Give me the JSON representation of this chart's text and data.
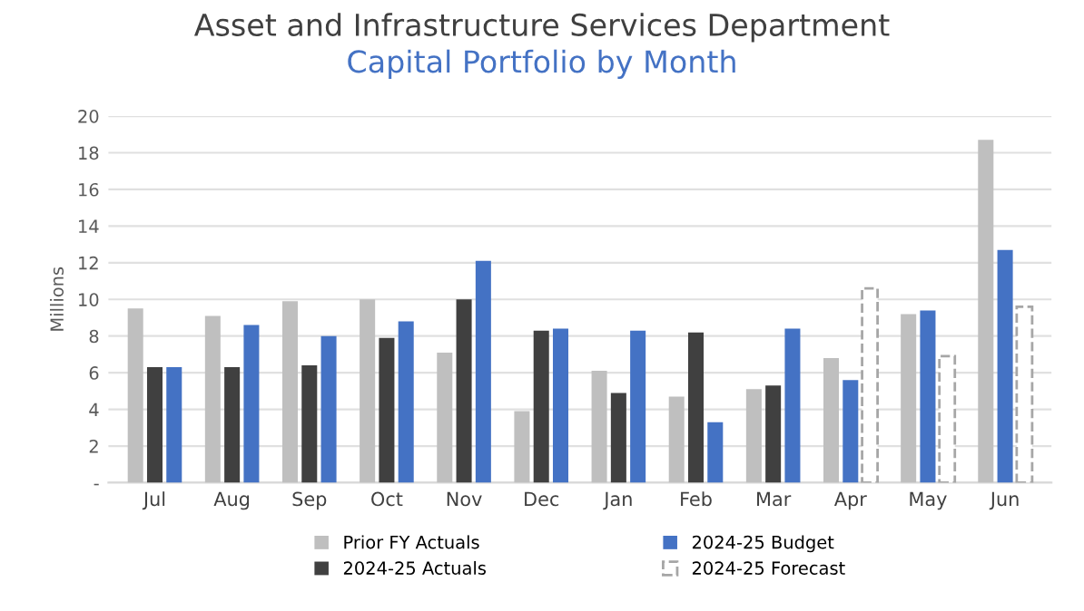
{
  "chart_data": {
    "type": "bar",
    "title": "Asset and Infrastructure Services Department",
    "subtitle": "Capital Portfolio by Month",
    "ylabel": "Millions",
    "categories": [
      "Jul",
      "Aug",
      "Sep",
      "Oct",
      "Nov",
      "Dec",
      "Jan",
      "Feb",
      "Mar",
      "Apr",
      "May",
      "Jun"
    ],
    "series": [
      {
        "name": "Prior FY Actuals",
        "color": "#bfbfbf",
        "values": [
          9.5,
          9.1,
          9.9,
          10.0,
          7.1,
          3.9,
          6.1,
          4.7,
          5.1,
          6.8,
          9.2,
          18.7
        ]
      },
      {
        "name": "2024-25 Actuals",
        "color": "#404040",
        "values": [
          6.3,
          6.3,
          6.4,
          7.9,
          10.0,
          8.3,
          4.9,
          8.2,
          5.3,
          null,
          null,
          null
        ]
      },
      {
        "name": "2024-25 Budget",
        "color": "#4472c4",
        "values": [
          6.3,
          8.6,
          8.0,
          8.8,
          12.1,
          8.4,
          8.3,
          3.3,
          8.4,
          5.6,
          9.4,
          12.7
        ]
      },
      {
        "name": "2024-25 Forecast",
        "color": "#a6a6a6",
        "line_style": "dashed",
        "values": [
          null,
          null,
          null,
          null,
          null,
          null,
          null,
          null,
          null,
          10.6,
          6.9,
          9.6
        ]
      }
    ],
    "ylim": [
      0,
      20
    ],
    "yticks": [
      {
        "value": 0,
        "label": "-"
      },
      2,
      4,
      6,
      8,
      10,
      12,
      14,
      16,
      18,
      20
    ],
    "grid": "y",
    "legend": "bottom"
  }
}
